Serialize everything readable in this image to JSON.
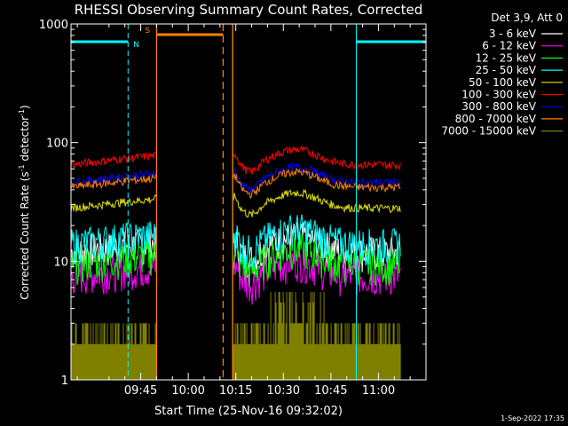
{
  "chart_data": {
    "type": "line",
    "title": "RHESSI Observing Summary Count Rates, Corrected",
    "xlabel": "Start Time (25-Nov-16 09:32:02)",
    "ylabel_main": "Corrected Count Rate (s",
    "ylabel_sup1": "-1",
    "ylabel_mid": " detector",
    "ylabel_sup2": "-1",
    "ylabel_end": ")",
    "yscale": "log",
    "ylim": [
      1,
      1000
    ],
    "xlim_minutes": [
      563,
      675
    ],
    "x_ticks": [
      {
        "t": 585,
        "label": "09:45"
      },
      {
        "t": 600,
        "label": "10:00"
      },
      {
        "t": 615,
        "label": "10:15"
      },
      {
        "t": 630,
        "label": "10:30"
      },
      {
        "t": 645,
        "label": "10:45"
      },
      {
        "t": 660,
        "label": "11:00"
      }
    ],
    "y_ticks": [
      {
        "v": 1,
        "label": "1"
      },
      {
        "v": 10,
        "label": "10"
      },
      {
        "v": 100,
        "label": "100"
      },
      {
        "v": 1000,
        "label": "1000"
      }
    ],
    "legend_header": "Det 3,9, Att 0",
    "legend_position": "right",
    "series": [
      {
        "name": "3 - 6 keV",
        "color": "#ffffff",
        "level": 12
      },
      {
        "name": "6 - 12 keV",
        "color": "#ff00ff",
        "level": 7.5
      },
      {
        "name": "12 - 25 keV",
        "color": "#00ff00",
        "level": 9.5
      },
      {
        "name": "25 - 50 keV",
        "color": "#00ffff",
        "level": 14
      },
      {
        "name": "50 - 100 keV",
        "color": "#e0e000",
        "level": 28
      },
      {
        "name": "100 - 300 keV",
        "color": "#ff0000",
        "level": 65
      },
      {
        "name": "300 - 800 keV",
        "color": "#0000ff",
        "level": 46
      },
      {
        "name": "800 - 7000 keV",
        "color": "#ff8000",
        "level": 42
      },
      {
        "name": "7000 - 15000 keV",
        "color": "#808000",
        "level": 1.5
      }
    ],
    "data_segments": [
      {
        "start": 563,
        "end": 590
      },
      {
        "start": 614,
        "end": 667
      }
    ],
    "markers": {
      "saa_label": "S",
      "night_label": "N",
      "saa_span": [
        590,
        611
      ],
      "night_spans": [
        [
          563,
          581
        ],
        [
          653,
          675
        ]
      ],
      "orange_lines_solid": [
        590,
        614
      ],
      "orange_lines_dashed": [
        611
      ],
      "cyan_lines_solid": [
        563,
        614,
        653
      ],
      "cyan_lines_dashed": [
        581,
        675
      ],
      "bar_level": 800,
      "night_color": "#00ffff",
      "saa_color": "#ff8000"
    },
    "timestamp": "1-Sep-2022 17:35"
  }
}
